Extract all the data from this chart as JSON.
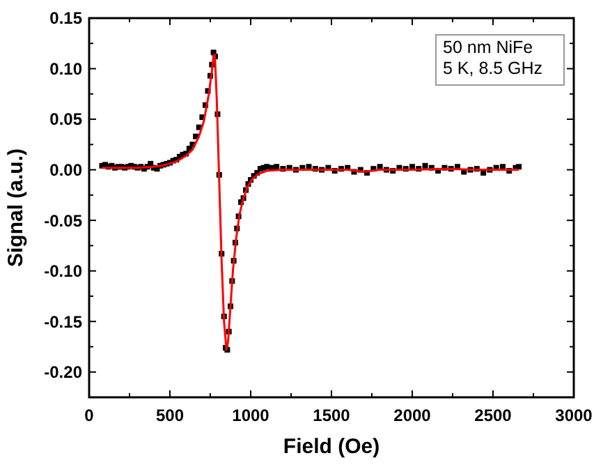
{
  "chart_data": {
    "type": "scatter",
    "xlabel": "Field (Oe)",
    "ylabel": "Signal (a.u.)",
    "annotations": [
      "50 nm NiFe",
      "5 K, 8.5 GHz"
    ],
    "xlim": [
      0,
      3000
    ],
    "ylim": [
      -0.225,
      0.15
    ],
    "xticks": [
      0,
      {
        "value": 250,
        "label": null
      },
      500,
      {
        "value": 750,
        "label": null
      },
      1000,
      {
        "value": 1250,
        "label": null
      },
      1500,
      {
        "value": 1750,
        "label": null
      },
      2000,
      {
        "value": 2250,
        "label": null
      },
      2500,
      {
        "value": 2750,
        "label": null
      },
      3000
    ],
    "yticks": [
      {
        "value": -0.2,
        "label": "-0.20"
      },
      {
        "value": -0.175,
        "label": null
      },
      {
        "value": -0.15,
        "label": "-0.15"
      },
      {
        "value": -0.125,
        "label": null
      },
      {
        "value": -0.1,
        "label": "-0.10"
      },
      {
        "value": -0.075,
        "label": null
      },
      {
        "value": -0.05,
        "label": "-0.05"
      },
      {
        "value": -0.025,
        "label": null
      },
      {
        "value": 0,
        "label": "0.00"
      },
      {
        "value": 0.025,
        "label": null
      },
      {
        "value": 0.05,
        "label": "0.05"
      },
      {
        "value": 0.075,
        "label": null
      },
      {
        "value": 0.1,
        "label": "0.10"
      },
      {
        "value": 0.125,
        "label": null
      },
      {
        "value": 0.15,
        "label": "0.15"
      }
    ],
    "grid": false,
    "series": [
      {
        "marker": "square",
        "color": "#000000",
        "x": [
          80,
          100,
          120,
          140,
          160,
          180,
          200,
          220,
          240,
          260,
          280,
          300,
          320,
          340,
          360,
          380,
          400,
          420,
          440,
          460,
          480,
          500,
          520,
          540,
          560,
          580,
          600,
          620,
          640,
          660,
          680,
          700,
          720,
          735,
          750,
          760,
          770,
          780,
          795,
          805,
          820,
          835,
          845,
          855,
          865,
          875,
          885,
          895,
          905,
          915,
          925,
          940,
          955,
          970,
          985,
          1000,
          1020,
          1040,
          1060,
          1080,
          1100,
          1130,
          1160,
          1200,
          1240,
          1280,
          1320,
          1360,
          1400,
          1440,
          1480,
          1520,
          1560,
          1600,
          1640,
          1680,
          1720,
          1760,
          1800,
          1840,
          1880,
          1920,
          1960,
          2000,
          2040,
          2080,
          2120,
          2160,
          2200,
          2240,
          2280,
          2320,
          2360,
          2400,
          2440,
          2480,
          2520,
          2560,
          2600,
          2640,
          2660
        ],
        "values": [
          0.004,
          0.005,
          0.003,
          0.004,
          0.002,
          0.003,
          0.003,
          0.002,
          0.003,
          0.004,
          0.003,
          0.002,
          0.003,
          0.001,
          0.003,
          0.006,
          0.002,
          0.001,
          0.004,
          0.005,
          0.006,
          0.007,
          0.009,
          0.01,
          0.013,
          0.015,
          0.016,
          0.021,
          0.025,
          0.033,
          0.042,
          0.052,
          0.064,
          0.078,
          0.093,
          0.104,
          0.116,
          0.112,
          0.055,
          -0.005,
          -0.083,
          -0.145,
          -0.176,
          -0.178,
          -0.16,
          -0.135,
          -0.11,
          -0.09,
          -0.072,
          -0.058,
          -0.046,
          -0.032,
          -0.028,
          -0.02,
          -0.014,
          -0.01,
          -0.006,
          -0.003,
          0.001,
          0.002,
          0.003,
          0.002,
          0.003,
          0.001,
          0.002,
          0,
          0.002,
          0.003,
          0.001,
          0,
          0.002,
          -0.001,
          0.001,
          0.002,
          -0.002,
          0,
          -0.003,
          0.001,
          0.003,
          0,
          -0.001,
          0.002,
          0.001,
          0.003,
          0.001,
          0.004,
          0.002,
          -0.001,
          0.002,
          0.001,
          0.003,
          -0.002,
          0,
          0.001,
          -0.003,
          0,
          0.002,
          0.003,
          -0.001,
          0.002,
          0.003
        ]
      },
      {
        "type": "line",
        "marker": "none",
        "line_style": "solid",
        "color": "#ff0000",
        "x": [
          80,
          200,
          300,
          400,
          450,
          500,
          550,
          600,
          640,
          680,
          710,
          740,
          760,
          770,
          778,
          790,
          805,
          820,
          835,
          850,
          860,
          875,
          890,
          910,
          930,
          950,
          980,
          1010,
          1050,
          1100,
          1200,
          1400,
          1600,
          1700,
          1800,
          2000,
          2200,
          2400,
          2660
        ],
        "values": [
          0.002,
          0.002,
          0.002,
          0.003,
          0.004,
          0.006,
          0.009,
          0.014,
          0.02,
          0.033,
          0.048,
          0.074,
          0.098,
          0.112,
          0.114,
          0.07,
          -0.01,
          -0.09,
          -0.15,
          -0.178,
          -0.17,
          -0.135,
          -0.1,
          -0.068,
          -0.045,
          -0.031,
          -0.017,
          -0.009,
          -0.004,
          -0.001,
          0,
          0,
          0,
          -0.002,
          0,
          0,
          0.001,
          0,
          0
        ]
      }
    ]
  }
}
